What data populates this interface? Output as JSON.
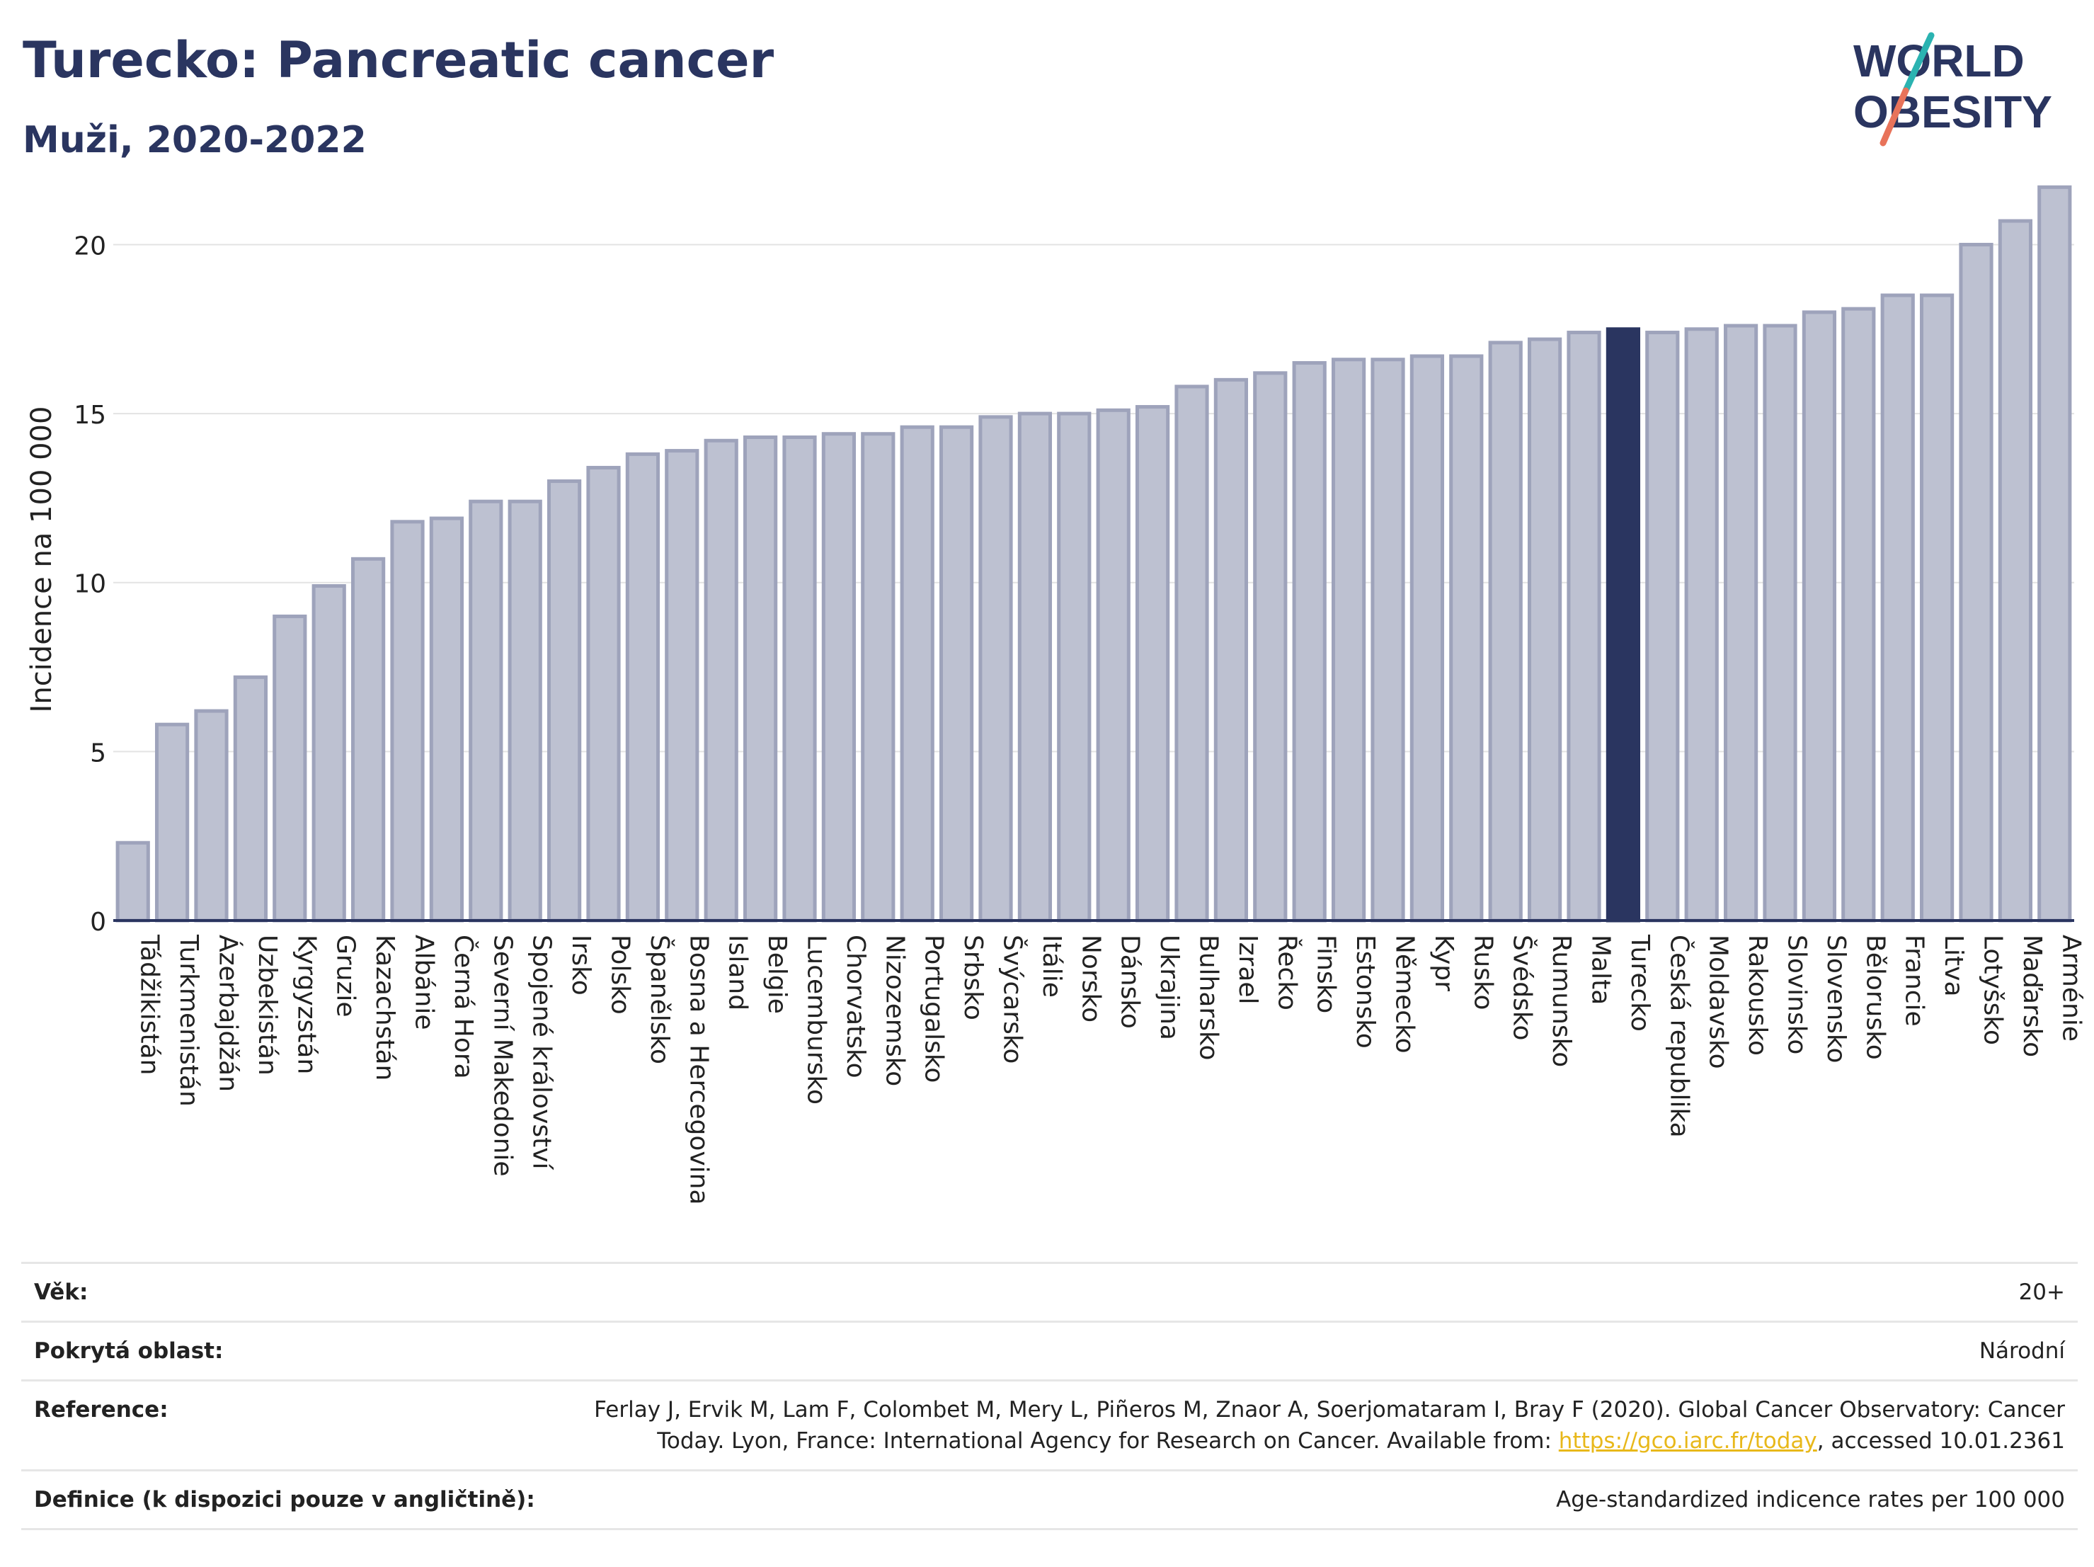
{
  "header": {
    "title": "Turecko: Pancreatic cancer",
    "subtitle": "Muži, 2020-2022",
    "logo_line1": "WORLD",
    "logo_line2": "OBESITY"
  },
  "colors": {
    "bar": "#bdc1d1",
    "bar_stroke": "#9ea3bb",
    "highlight": "#2a3560",
    "title": "#2a3560",
    "logo_teal": "#2bb3b1",
    "logo_coral": "#e8735a"
  },
  "chart_data": {
    "type": "bar",
    "title": "",
    "ylabel": "Incidence na 100 000",
    "ylim": [
      0,
      22
    ],
    "yticks": [
      0,
      5,
      10,
      15,
      20
    ],
    "grid": true,
    "highlight": "Turecko",
    "categories": [
      "Tádžikistán",
      "Turkmenistán",
      "Ázerbajdžán",
      "Uzbekistán",
      "Kyrgyzstán",
      "Gruzie",
      "Kazachstán",
      "Albánie",
      "Černá Hora",
      "Severní Makedonie",
      "Spojené království",
      "Irsko",
      "Polsko",
      "Španělsko",
      "Bosna a Hercegovina",
      "Island",
      "Belgie",
      "Lucembursko",
      "Chorvatsko",
      "Nizozemsko",
      "Portugalsko",
      "Srbsko",
      "Švýcarsko",
      "Itálie",
      "Norsko",
      "Dánsko",
      "Ukrajina",
      "Bulharsko",
      "Izrael",
      "Řecko",
      "Finsko",
      "Estonsko",
      "Německo",
      "Kypr",
      "Rusko",
      "Švédsko",
      "Rumunsko",
      "Malta",
      "Turecko",
      "Česká republika",
      "Moldavsko",
      "Rakousko",
      "Slovinsko",
      "Slovensko",
      "Bělorusko",
      "Francie",
      "Litva",
      "Lotyšsko",
      "Maďarsko",
      "Arménie"
    ],
    "values": [
      2.3,
      5.8,
      6.2,
      7.2,
      9.0,
      9.9,
      10.7,
      11.8,
      11.9,
      12.4,
      12.4,
      13.0,
      13.4,
      13.8,
      13.9,
      14.2,
      14.3,
      14.3,
      14.4,
      14.4,
      14.6,
      14.6,
      14.9,
      15.0,
      15.0,
      15.1,
      15.2,
      15.8,
      16.0,
      16.2,
      16.5,
      16.6,
      16.6,
      16.7,
      16.7,
      17.1,
      17.2,
      17.4,
      17.5,
      17.4,
      17.5,
      17.6,
      17.6,
      18.0,
      18.1,
      18.5,
      18.5,
      20.0,
      20.7,
      21.7
    ]
  },
  "meta": {
    "age_label": "Věk:",
    "age_value": "20+",
    "area_label": "Pokrytá oblast:",
    "area_value": "Národní",
    "reference_label": "Reference:",
    "reference_line1": "Ferlay J, Ervik M, Lam F, Colombet M, Mery L, Piñeros M, Znaor A, Soerjomataram I, Bray F (2020). Global Cancer Observatory: Cancer",
    "reference_line2_pre": "Today. Lyon, France: International Agency for Research on Cancer. Available from: ",
    "reference_link": "https://gco.iarc.fr/today",
    "reference_line2_post": ", accessed 10.01.2361",
    "definition_label": "Definice (k dispozici pouze v angličtině):",
    "definition_value": "Age-standardized indicence rates per 100 000"
  }
}
